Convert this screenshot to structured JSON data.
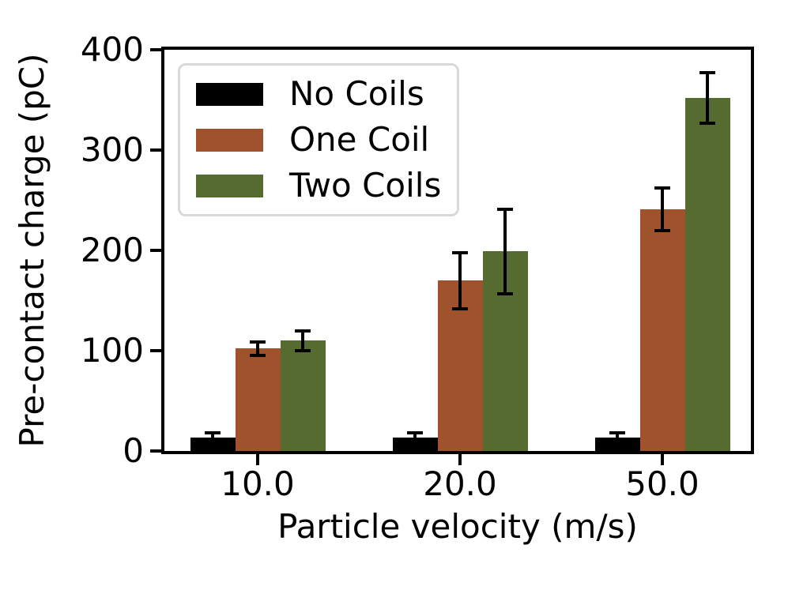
{
  "figure": {
    "background": "#ffffff",
    "axis_color": "#000000",
    "error_bar_color": "#000000"
  },
  "chart_data": {
    "type": "bar",
    "title": "",
    "xlabel": "Particle velocity (m/s)",
    "ylabel": "Pre-contact charge (pC)",
    "categories": [
      "10.0",
      "20.0",
      "50.0"
    ],
    "series": [
      {
        "name": "No Coils",
        "color": "#000000",
        "values": [
          13,
          13,
          13
        ],
        "errors": [
          5,
          5,
          5
        ]
      },
      {
        "name": "One Coil",
        "color": "#a0522d",
        "values": [
          102,
          170,
          241
        ],
        "errors": [
          7,
          28,
          21
        ]
      },
      {
        "name": "Two Coils",
        "color": "#556b2f",
        "values": [
          110,
          199,
          352
        ],
        "errors": [
          10,
          42,
          25
        ]
      }
    ],
    "ylim": [
      0,
      400
    ],
    "yticks": [
      0,
      100,
      200,
      300,
      400
    ],
    "grid": false,
    "legend": {
      "position": "upper-left",
      "border_color": "#d9d9d9",
      "background": "#ffffff",
      "entries": [
        "No Coils",
        "One Coil",
        "Two Coils"
      ]
    }
  }
}
